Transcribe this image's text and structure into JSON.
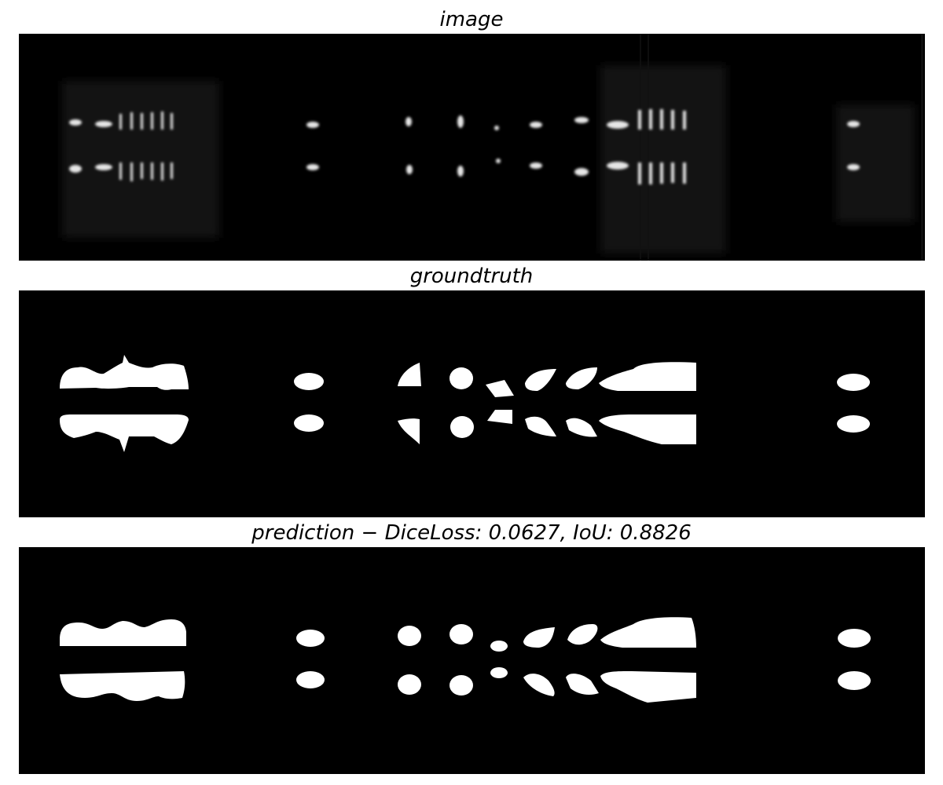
{
  "panels": [
    {
      "title": "image",
      "type": "grayscale-ultrasound-frame"
    },
    {
      "title": "groundtruth",
      "type": "binary-mask"
    },
    {
      "title": "prediction − DiceLoss: 0.0627, IoU: 0.8826",
      "type": "binary-mask"
    }
  ],
  "colors": {
    "background": "#000000",
    "mask": "#ffffff",
    "page": "#ffffff"
  }
}
